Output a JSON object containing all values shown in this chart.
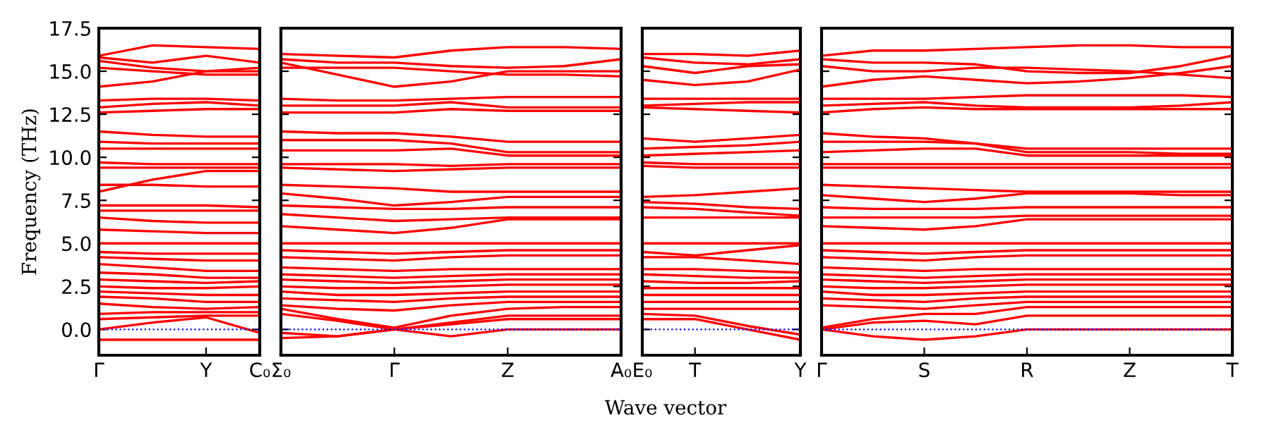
{
  "chart_data": [
    {
      "type": "line",
      "ylabel": "Frequency (THz)",
      "line_style": "solid",
      "marker": "none",
      "categories": [
        "Γ",
        null,
        "Y",
        "C₀"
      ],
      "ylim": [
        -1.5,
        17.5
      ],
      "yticks": [
        {
          "value": 0,
          "label": "0.0"
        },
        {
          "value": 2.5,
          "label": "2.5"
        },
        {
          "value": 5,
          "label": "5.0"
        },
        {
          "value": 7.5,
          "label": "7.5"
        },
        {
          "value": 10,
          "label": "10.0"
        },
        {
          "value": 12.5,
          "label": "12.5"
        },
        {
          "value": 15,
          "label": "15.0"
        },
        {
          "value": 17.5,
          "label": "17.5"
        }
      ],
      "ref_lines": [
        {
          "axis": "y",
          "value": 0,
          "color": "#0000ff",
          "line_style": "dotted"
        }
      ],
      "series": [
        {
          "color": "#ff0000",
          "values": [
            15.9,
            16.5,
            16.4,
            16.3
          ]
        },
        {
          "color": "#ff0000",
          "values": [
            15.8,
            15.5,
            15.9,
            15.5
          ]
        },
        {
          "color": "#ff0000",
          "values": [
            15.6,
            15.2,
            15.0,
            15.2
          ]
        },
        {
          "color": "#ff0000",
          "values": [
            15.2,
            15.0,
            14.8,
            14.8
          ]
        },
        {
          "color": "#ff0000",
          "values": [
            14.1,
            14.4,
            15.0,
            15.0
          ]
        },
        {
          "color": "#ff0000",
          "values": [
            13.3,
            13.4,
            13.4,
            13.3
          ]
        },
        {
          "color": "#ff0000",
          "values": [
            12.9,
            13.1,
            13.2,
            13.0
          ]
        },
        {
          "color": "#ff0000",
          "values": [
            12.6,
            12.7,
            12.8,
            12.8
          ]
        },
        {
          "color": "#ff0000",
          "values": [
            11.5,
            11.3,
            11.2,
            11.2
          ]
        },
        {
          "color": "#ff0000",
          "values": [
            10.9,
            10.8,
            10.8,
            10.8
          ]
        },
        {
          "color": "#ff0000",
          "values": [
            10.5,
            10.5,
            10.5,
            10.5
          ]
        },
        {
          "color": "#ff0000",
          "values": [
            9.7,
            9.6,
            9.6,
            9.6
          ]
        },
        {
          "color": "#ff0000",
          "values": [
            9.4,
            9.4,
            9.4,
            9.4
          ]
        },
        {
          "color": "#ff0000",
          "values": [
            8.0,
            8.7,
            9.2,
            9.2
          ]
        },
        {
          "color": "#ff0000",
          "values": [
            8.4,
            8.4,
            8.3,
            8.3
          ]
        },
        {
          "color": "#ff0000",
          "values": [
            7.2,
            7.2,
            7.2,
            7.1
          ]
        },
        {
          "color": "#ff0000",
          "values": [
            6.9,
            6.9,
            6.9,
            6.9
          ]
        },
        {
          "color": "#ff0000",
          "values": [
            6.5,
            6.3,
            6.2,
            6.2
          ]
        },
        {
          "color": "#ff0000",
          "values": [
            5.8,
            5.7,
            5.6,
            5.6
          ]
        },
        {
          "color": "#ff0000",
          "values": [
            5.0,
            5.0,
            5.0,
            5.0
          ]
        },
        {
          "color": "#ff0000",
          "values": [
            4.5,
            4.4,
            4.4,
            4.4
          ]
        },
        {
          "color": "#ff0000",
          "values": [
            4.2,
            4.1,
            4.0,
            4.0
          ]
        },
        {
          "color": "#ff0000",
          "values": [
            3.8,
            3.6,
            3.4,
            3.4
          ]
        },
        {
          "color": "#ff0000",
          "values": [
            3.3,
            3.2,
            3.0,
            3.0
          ]
        },
        {
          "color": "#ff0000",
          "values": [
            2.9,
            2.8,
            2.7,
            2.8
          ]
        },
        {
          "color": "#ff0000",
          "values": [
            2.5,
            2.4,
            2.4,
            2.5
          ]
        },
        {
          "color": "#ff0000",
          "values": [
            2.2,
            2.1,
            2.0,
            2.0
          ]
        },
        {
          "color": "#ff0000",
          "values": [
            1.9,
            1.8,
            1.6,
            1.6
          ]
        },
        {
          "color": "#ff0000",
          "values": [
            1.5,
            1.3,
            1.2,
            1.3
          ]
        },
        {
          "color": "#ff0000",
          "values": [
            0.9,
            1.0,
            1.0,
            1.0
          ]
        },
        {
          "color": "#ff0000",
          "values": [
            0.6,
            0.7,
            0.8,
            0.8
          ]
        },
        {
          "color": "#ff0000",
          "values": [
            0.0,
            0.4,
            0.7,
            -0.2
          ]
        },
        {
          "color": "#ff0000",
          "values": [
            -0.6,
            -0.6,
            -0.6,
            -0.6
          ]
        }
      ]
    },
    {
      "type": "line",
      "line_style": "solid",
      "marker": "none",
      "tick_labels": "x",
      "categories": [
        "Σ₀",
        null,
        "Γ",
        null,
        "Z",
        null,
        "A₀"
      ],
      "ylim": [
        -1.5,
        17.5
      ],
      "yticks": [
        {
          "value": 0,
          "label": null
        },
        {
          "value": 2.5,
          "label": null
        },
        {
          "value": 5,
          "label": null
        },
        {
          "value": 7.5,
          "label": null
        },
        {
          "value": 10,
          "label": null
        },
        {
          "value": 12.5,
          "label": null
        },
        {
          "value": 15,
          "label": null
        },
        {
          "value": 17.5,
          "label": null
        }
      ],
      "ref_lines": [
        {
          "axis": "y",
          "value": 0,
          "color": "#0000ff",
          "line_style": "dotted"
        }
      ],
      "series": [
        {
          "color": "#ff0000",
          "values": [
            16.0,
            15.9,
            15.8,
            16.2,
            16.4,
            16.4,
            16.3
          ]
        },
        {
          "color": "#ff0000",
          "values": [
            15.7,
            15.5,
            15.5,
            15.3,
            15.2,
            15.3,
            15.7
          ]
        },
        {
          "color": "#ff0000",
          "values": [
            15.5,
            14.8,
            14.1,
            14.4,
            15.0,
            15.0,
            15.0
          ]
        },
        {
          "color": "#ff0000",
          "values": [
            15.2,
            15.2,
            15.2,
            15.0,
            14.8,
            14.8,
            14.7
          ]
        },
        {
          "color": "#ff0000",
          "values": [
            13.4,
            13.3,
            13.3,
            13.4,
            13.5,
            13.5,
            13.5
          ]
        },
        {
          "color": "#ff0000",
          "values": [
            13.0,
            13.0,
            13.0,
            13.2,
            12.9,
            12.9,
            12.9
          ]
        },
        {
          "color": "#ff0000",
          "values": [
            12.6,
            12.6,
            12.6,
            12.8,
            12.7,
            12.7,
            12.7
          ]
        },
        {
          "color": "#ff0000",
          "values": [
            11.5,
            11.4,
            11.4,
            11.2,
            10.9,
            10.9,
            10.9
          ]
        },
        {
          "color": "#ff0000",
          "values": [
            11.0,
            11.0,
            11.0,
            10.8,
            10.3,
            10.3,
            10.3
          ]
        },
        {
          "color": "#ff0000",
          "values": [
            10.4,
            10.4,
            10.4,
            10.5,
            10.1,
            10.1,
            10.1
          ]
        },
        {
          "color": "#ff0000",
          "values": [
            9.6,
            9.6,
            9.6,
            9.5,
            9.6,
            9.6,
            9.6
          ]
        },
        {
          "color": "#ff0000",
          "values": [
            9.4,
            9.3,
            9.2,
            9.3,
            9.4,
            9.4,
            9.4
          ]
        },
        {
          "color": "#ff0000",
          "values": [
            8.4,
            8.3,
            8.2,
            8.0,
            8.0,
            8.0,
            8.0
          ]
        },
        {
          "color": "#ff0000",
          "values": [
            7.9,
            7.6,
            7.2,
            7.4,
            7.7,
            7.7,
            7.7
          ]
        },
        {
          "color": "#ff0000",
          "values": [
            7.2,
            7.1,
            7.0,
            7.0,
            7.1,
            7.1,
            7.1
          ]
        },
        {
          "color": "#ff0000",
          "values": [
            6.7,
            6.5,
            6.3,
            6.4,
            6.5,
            6.5,
            6.5
          ]
        },
        {
          "color": "#ff0000",
          "values": [
            6.0,
            5.8,
            5.6,
            5.9,
            6.4,
            6.4,
            6.4
          ]
        },
        {
          "color": "#ff0000",
          "values": [
            5.0,
            5.0,
            5.0,
            5.0,
            5.0,
            5.0,
            5.0
          ]
        },
        {
          "color": "#ff0000",
          "values": [
            4.6,
            4.5,
            4.4,
            4.5,
            4.6,
            4.6,
            4.6
          ]
        },
        {
          "color": "#ff0000",
          "values": [
            4.2,
            4.1,
            4.0,
            4.2,
            4.3,
            4.3,
            4.3
          ]
        },
        {
          "color": "#ff0000",
          "values": [
            3.6,
            3.5,
            3.4,
            3.5,
            3.5,
            3.5,
            3.5
          ]
        },
        {
          "color": "#ff0000",
          "values": [
            3.2,
            3.1,
            3.0,
            3.1,
            3.2,
            3.2,
            3.2
          ]
        },
        {
          "color": "#ff0000",
          "values": [
            2.9,
            2.8,
            2.7,
            2.8,
            2.9,
            2.9,
            2.9
          ]
        },
        {
          "color": "#ff0000",
          "values": [
            2.5,
            2.4,
            2.4,
            2.5,
            2.6,
            2.6,
            2.6
          ]
        },
        {
          "color": "#ff0000",
          "values": [
            2.2,
            2.0,
            2.0,
            2.1,
            2.2,
            2.2,
            2.2
          ]
        },
        {
          "color": "#ff0000",
          "values": [
            1.8,
            1.7,
            1.6,
            1.8,
            1.9,
            1.9,
            1.9
          ]
        },
        {
          "color": "#ff0000",
          "values": [
            1.4,
            1.2,
            1.1,
            1.4,
            1.6,
            1.6,
            1.6
          ]
        },
        {
          "color": "#ff0000",
          "values": [
            1.2,
            0.6,
            0.1,
            0.8,
            1.2,
            1.3,
            1.3
          ]
        },
        {
          "color": "#ff0000",
          "values": [
            0.9,
            0.5,
            0.0,
            0.4,
            0.8,
            0.8,
            0.8
          ]
        },
        {
          "color": "#ff0000",
          "values": [
            -0.2,
            -0.4,
            0.0,
            0.3,
            0.6,
            0.6,
            0.6
          ]
        },
        {
          "color": "#ff0000",
          "values": [
            -0.5,
            -0.4,
            0.0,
            -0.4,
            0.0,
            0.0,
            0.0
          ]
        }
      ]
    },
    {
      "type": "line",
      "xlabel": "Wave vector",
      "line_style": "solid",
      "marker": "none",
      "tick_labels": "x",
      "categories": [
        "E₀",
        "T",
        null,
        "Y"
      ],
      "ylim": [
        -1.5,
        17.5
      ],
      "yticks": [
        {
          "value": 0,
          "label": null
        },
        {
          "value": 2.5,
          "label": null
        },
        {
          "value": 5,
          "label": null
        },
        {
          "value": 7.5,
          "label": null
        },
        {
          "value": 10,
          "label": null
        },
        {
          "value": 12.5,
          "label": null
        },
        {
          "value": 15,
          "label": null
        },
        {
          "value": 17.5,
          "label": null
        }
      ],
      "ref_lines": [
        {
          "axis": "y",
          "value": 0,
          "color": "#0000ff",
          "line_style": "dotted"
        }
      ],
      "series": [
        {
          "color": "#ff0000",
          "values": [
            16.0,
            16.0,
            15.9,
            16.2
          ]
        },
        {
          "color": "#ff0000",
          "values": [
            15.8,
            15.5,
            15.4,
            15.7
          ]
        },
        {
          "color": "#ff0000",
          "values": [
            15.3,
            14.9,
            15.3,
            15.4
          ]
        },
        {
          "color": "#ff0000",
          "values": [
            14.5,
            14.2,
            14.4,
            15.1
          ]
        },
        {
          "color": "#ff0000",
          "values": [
            13.4,
            13.4,
            13.4,
            13.4
          ]
        },
        {
          "color": "#ff0000",
          "values": [
            13.0,
            13.1,
            13.2,
            13.2
          ]
        },
        {
          "color": "#ff0000",
          "values": [
            12.9,
            12.8,
            12.7,
            12.6
          ]
        },
        {
          "color": "#ff0000",
          "values": [
            11.1,
            10.9,
            11.1,
            11.3
          ]
        },
        {
          "color": "#ff0000",
          "values": [
            10.5,
            10.6,
            10.7,
            10.9
          ]
        },
        {
          "color": "#ff0000",
          "values": [
            10.1,
            10.2,
            10.3,
            10.4
          ]
        },
        {
          "color": "#ff0000",
          "values": [
            9.7,
            9.6,
            9.6,
            9.6
          ]
        },
        {
          "color": "#ff0000",
          "values": [
            9.5,
            9.4,
            9.4,
            9.4
          ]
        },
        {
          "color": "#ff0000",
          "values": [
            7.7,
            7.8,
            8.0,
            8.2
          ]
        },
        {
          "color": "#ff0000",
          "values": [
            7.4,
            7.3,
            7.1,
            7.0
          ]
        },
        {
          "color": "#ff0000",
          "values": [
            7.1,
            7.0,
            6.8,
            6.6
          ]
        },
        {
          "color": "#ff0000",
          "values": [
            6.5,
            6.5,
            6.5,
            6.5
          ]
        },
        {
          "color": "#ff0000",
          "values": [
            5.0,
            5.0,
            5.0,
            5.0
          ]
        },
        {
          "color": "#ff0000",
          "values": [
            4.5,
            4.3,
            4.6,
            4.9
          ]
        },
        {
          "color": "#ff0000",
          "values": [
            4.2,
            4.2,
            4.0,
            3.8
          ]
        },
        {
          "color": "#ff0000",
          "values": [
            3.5,
            3.5,
            3.4,
            3.3
          ]
        },
        {
          "color": "#ff0000",
          "values": [
            3.2,
            3.1,
            3.0,
            3.0
          ]
        },
        {
          "color": "#ff0000",
          "values": [
            2.8,
            2.7,
            2.7,
            2.8
          ]
        },
        {
          "color": "#ff0000",
          "values": [
            2.4,
            2.4,
            2.4,
            2.4
          ]
        },
        {
          "color": "#ff0000",
          "values": [
            2.0,
            2.0,
            2.0,
            2.0
          ]
        },
        {
          "color": "#ff0000",
          "values": [
            1.6,
            1.6,
            1.6,
            1.6
          ]
        },
        {
          "color": "#ff0000",
          "values": [
            1.2,
            1.2,
            1.2,
            1.2
          ]
        },
        {
          "color": "#ff0000",
          "values": [
            0.9,
            0.8,
            0.2,
            -0.3
          ]
        },
        {
          "color": "#ff0000",
          "values": [
            0.6,
            0.6,
            0.0,
            -0.6
          ]
        }
      ]
    },
    {
      "type": "line",
      "line_style": "solid",
      "marker": "none",
      "tick_labels": "x",
      "categories": [
        "Γ",
        null,
        "S",
        null,
        "R",
        null,
        "Z",
        null,
        "T"
      ],
      "ylim": [
        -1.5,
        17.5
      ],
      "yticks": [
        {
          "value": 0,
          "label": null
        },
        {
          "value": 2.5,
          "label": null
        },
        {
          "value": 5,
          "label": null
        },
        {
          "value": 7.5,
          "label": null
        },
        {
          "value": 10,
          "label": null
        },
        {
          "value": 12.5,
          "label": null
        },
        {
          "value": 15,
          "label": null
        },
        {
          "value": 17.5,
          "label": null
        }
      ],
      "ref_lines": [
        {
          "axis": "y",
          "value": 0,
          "color": "#0000ff",
          "line_style": "dotted"
        }
      ],
      "series": [
        {
          "color": "#ff0000",
          "values": [
            15.9,
            16.2,
            16.2,
            16.3,
            16.4,
            16.5,
            16.5,
            16.4,
            16.4
          ]
        },
        {
          "color": "#ff0000",
          "values": [
            15.7,
            15.5,
            15.5,
            15.4,
            15.0,
            14.9,
            14.9,
            15.3,
            15.9
          ]
        },
        {
          "color": "#ff0000",
          "values": [
            15.3,
            15.0,
            15.0,
            15.2,
            15.2,
            15.1,
            15.0,
            14.8,
            14.6
          ]
        },
        {
          "color": "#ff0000",
          "values": [
            14.1,
            14.5,
            14.7,
            14.5,
            14.3,
            14.4,
            14.6,
            14.9,
            15.3
          ]
        },
        {
          "color": "#ff0000",
          "values": [
            13.4,
            13.4,
            13.4,
            13.5,
            13.6,
            13.6,
            13.6,
            13.6,
            13.5
          ]
        },
        {
          "color": "#ff0000",
          "values": [
            13.0,
            13.1,
            13.2,
            13.0,
            12.9,
            12.9,
            12.9,
            13.0,
            13.2
          ]
        },
        {
          "color": "#ff0000",
          "values": [
            12.6,
            12.8,
            12.9,
            12.8,
            12.8,
            12.8,
            12.8,
            12.8,
            12.8
          ]
        },
        {
          "color": "#ff0000",
          "values": [
            11.4,
            11.2,
            11.1,
            10.8,
            10.5,
            10.5,
            10.5,
            10.5,
            10.5
          ]
        },
        {
          "color": "#ff0000",
          "values": [
            10.9,
            10.9,
            10.9,
            10.8,
            10.3,
            10.3,
            10.3,
            10.2,
            10.2
          ]
        },
        {
          "color": "#ff0000",
          "values": [
            10.3,
            10.4,
            10.5,
            10.5,
            10.1,
            10.1,
            10.1,
            10.1,
            10.1
          ]
        },
        {
          "color": "#ff0000",
          "values": [
            9.6,
            9.6,
            9.6,
            9.6,
            9.6,
            9.6,
            9.6,
            9.6,
            9.6
          ]
        },
        {
          "color": "#ff0000",
          "values": [
            9.4,
            9.4,
            9.4,
            9.4,
            9.4,
            9.4,
            9.4,
            9.4,
            9.4
          ]
        },
        {
          "color": "#ff0000",
          "values": [
            8.4,
            8.3,
            8.2,
            8.1,
            8.0,
            8.0,
            8.0,
            8.0,
            8.0
          ]
        },
        {
          "color": "#ff0000",
          "values": [
            7.8,
            7.6,
            7.4,
            7.6,
            7.9,
            7.9,
            7.9,
            7.8,
            7.8
          ]
        },
        {
          "color": "#ff0000",
          "values": [
            7.1,
            7.0,
            7.0,
            7.0,
            7.1,
            7.1,
            7.1,
            7.1,
            7.1
          ]
        },
        {
          "color": "#ff0000",
          "values": [
            6.5,
            6.5,
            6.5,
            6.5,
            6.6,
            6.6,
            6.6,
            6.6,
            6.6
          ]
        },
        {
          "color": "#ff0000",
          "values": [
            6.0,
            5.9,
            5.8,
            6.0,
            6.4,
            6.4,
            6.4,
            6.4,
            6.4
          ]
        },
        {
          "color": "#ff0000",
          "values": [
            5.0,
            5.0,
            5.0,
            5.0,
            5.0,
            5.0,
            5.0,
            5.0,
            5.0
          ]
        },
        {
          "color": "#ff0000",
          "values": [
            4.6,
            4.5,
            4.4,
            4.5,
            4.6,
            4.6,
            4.6,
            4.6,
            4.6
          ]
        },
        {
          "color": "#ff0000",
          "values": [
            4.2,
            4.1,
            4.0,
            4.2,
            4.3,
            4.3,
            4.3,
            4.3,
            4.3
          ]
        },
        {
          "color": "#ff0000",
          "values": [
            3.6,
            3.5,
            3.4,
            3.5,
            3.5,
            3.5,
            3.5,
            3.5,
            3.5
          ]
        },
        {
          "color": "#ff0000",
          "values": [
            3.2,
            3.1,
            3.0,
            3.1,
            3.2,
            3.2,
            3.2,
            3.2,
            3.2
          ]
        },
        {
          "color": "#ff0000",
          "values": [
            2.9,
            2.8,
            2.7,
            2.8,
            2.9,
            2.9,
            2.9,
            2.9,
            2.9
          ]
        },
        {
          "color": "#ff0000",
          "values": [
            2.5,
            2.4,
            2.4,
            2.5,
            2.6,
            2.6,
            2.6,
            2.6,
            2.6
          ]
        },
        {
          "color": "#ff0000",
          "values": [
            2.2,
            2.0,
            2.0,
            2.1,
            2.2,
            2.2,
            2.2,
            2.2,
            2.2
          ]
        },
        {
          "color": "#ff0000",
          "values": [
            1.8,
            1.7,
            1.6,
            1.8,
            1.9,
            1.9,
            1.9,
            1.9,
            1.9
          ]
        },
        {
          "color": "#ff0000",
          "values": [
            1.4,
            1.3,
            1.2,
            1.4,
            1.6,
            1.6,
            1.6,
            1.6,
            1.6
          ]
        },
        {
          "color": "#ff0000",
          "values": [
            0.1,
            0.6,
            0.9,
            0.9,
            1.3,
            1.3,
            1.3,
            1.3,
            1.3
          ]
        },
        {
          "color": "#ff0000",
          "values": [
            0.0,
            0.4,
            0.5,
            0.3,
            0.8,
            0.8,
            0.8,
            0.8,
            0.8
          ]
        },
        {
          "color": "#ff0000",
          "values": [
            0.0,
            -0.4,
            -0.6,
            -0.4,
            0.0,
            0.0,
            0.0,
            0.0,
            0.0
          ]
        }
      ]
    }
  ]
}
